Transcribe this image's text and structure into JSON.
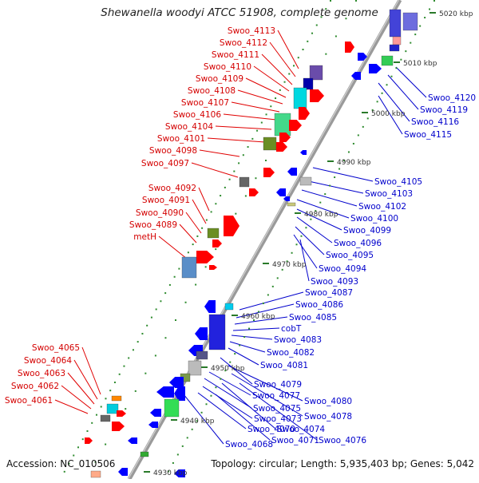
{
  "title": "Shewanella woodyi ATCC 51908, complete genome",
  "footer": {
    "accession": "Accession: NC_010506",
    "topology": "Topology: circular; Length: 5,935,403 bp; Genes: 5,042"
  },
  "colors": {
    "left_label": "#d40000",
    "right_label": "#0000cc",
    "backbone": "#9a9a9a",
    "tick": "#2a7a2a",
    "forward_gene": "#ff0000",
    "reverse_gene": "#0000ff"
  },
  "scale_labels": [
    "5020 kbp",
    "5010 kbp",
    "5000 kbp",
    "4990 kbp",
    "4980 kbp",
    "4970 kbp",
    "4960 kbp",
    "4950 kbp",
    "4940 kbp",
    "4930 kbp"
  ],
  "left_labels": [
    "Swoo_4113",
    "Swoo_4112",
    "Swoo_4111",
    "Swoo_4110",
    "Swoo_4109",
    "Swoo_4108",
    "Swoo_4107",
    "Swoo_4106",
    "Swoo_4104",
    "Swoo_4101",
    "Swoo_4098",
    "Swoo_4097",
    "Swoo_4092",
    "Swoo_4091",
    "Swoo_4090",
    "Swoo_4089",
    "metH",
    "Swoo_4065",
    "Swoo_4064",
    "Swoo_4063",
    "Swoo_4062",
    "Swoo_4061"
  ],
  "right_labels": [
    "Swoo_4120",
    "Swoo_4119",
    "Swoo_4116",
    "Swoo_4115",
    "Swoo_4105",
    "Swoo_4103",
    "Swoo_4102",
    "Swoo_4100",
    "Swoo_4099",
    "Swoo_4096",
    "Swoo_4095",
    "Swoo_4094",
    "Swoo_4093",
    "Swoo_4087",
    "Swoo_4086",
    "Swoo_4085",
    "cobT",
    "Swoo_4083",
    "Swoo_4082",
    "Swoo_4081",
    "Swoo_4079",
    "Swoo_4080",
    "Swoo_4077",
    "Swoo_4078",
    "Swoo_4075",
    "Swoo_4073",
    "Swoo_4074",
    "Swoo_4070",
    "Swoo_4071",
    "Swoo_4076",
    "Swoo_4068"
  ]
}
